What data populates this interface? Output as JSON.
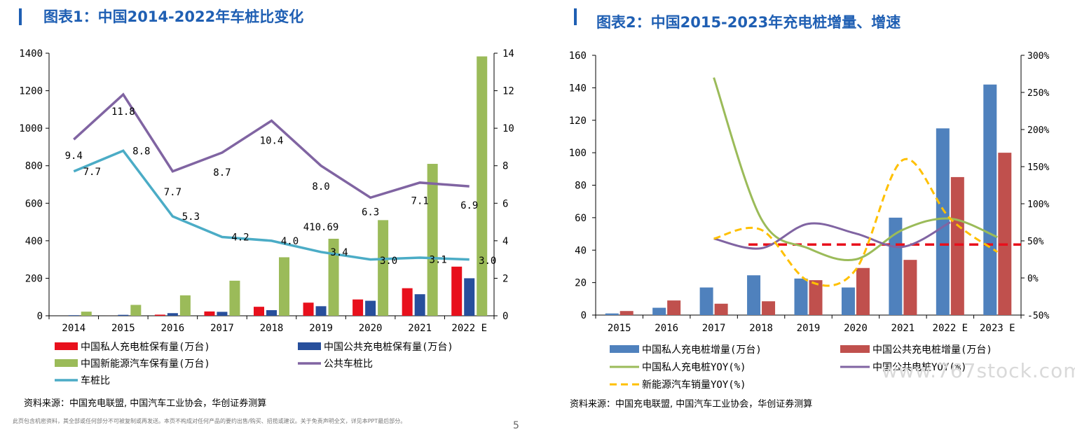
{
  "left_chart": {
    "title": "图表1：中国2014-2022年车桩比变化",
    "source": "资料来源：中国充电联盟, 中国汽车工业协会，华创证券测算"
  },
  "right_chart": {
    "title": "图表2：中国2015-2023年充电桩增量、增速",
    "source": "资料来源：中国充电联盟, 中国汽车工业协会，华创证券测算"
  },
  "disclaimer": "此页包含机密资料，其全部或任何部分不可被复制或再发送。本页不构成对任何产品的要约出售/购买、招揽或建议。关于免责声明全文，详见本PPT最后部分。",
  "page_number": "5",
  "watermark": "www.767stock.com",
  "chart_data": [
    {
      "type": "bar",
      "title": "图表1：中国2014-2022年车桩比变化",
      "categories": [
        "2014",
        "2015",
        "2016",
        "2017",
        "2018",
        "2019",
        "2020",
        "2021",
        "2022 E"
      ],
      "ylim": [
        0,
        1400
      ],
      "y_ticks": [
        0,
        200,
        400,
        600,
        800,
        1000,
        1200,
        1400
      ],
      "y2lim": [
        0,
        14
      ],
      "y2_ticks": [
        0,
        2,
        4,
        6,
        8,
        10,
        12,
        14
      ],
      "series": [
        {
          "name": "中国私人充电桩保有量(万台)",
          "type": "bar",
          "axis": "left",
          "color": "#e8101c",
          "values": [
            0,
            0.1,
            6,
            23,
            48,
            70,
            87,
            147,
            262
          ]
        },
        {
          "name": "中国公共充电桩保有量(万台)",
          "type": "bar",
          "axis": "left",
          "color": "#274f9c",
          "values": [
            3,
            5,
            14,
            21,
            30,
            51,
            80,
            115,
            200
          ]
        },
        {
          "name": "中国新能源汽车保有量(万台)",
          "type": "bar",
          "axis": "left",
          "color": "#9bbb59",
          "values": [
            22,
            58,
            109,
            187,
            312,
            410.69,
            510,
            810,
            1383
          ]
        },
        {
          "name": "公共车桩比",
          "type": "line",
          "axis": "right",
          "color": "#8064a2",
          "values": [
            9.4,
            11.8,
            7.7,
            8.7,
            10.4,
            8.0,
            6.3,
            7.1,
            6.9
          ]
        },
        {
          "name": "车桩比",
          "type": "line",
          "axis": "right",
          "color": "#4bacc6",
          "values": [
            7.7,
            8.8,
            5.3,
            4.2,
            4.0,
            3.4,
            3.0,
            3.1,
            3.0
          ]
        }
      ],
      "labels": [
        {
          "text": "9.4",
          "i": 0,
          "v": 8.55,
          "dx": 0
        },
        {
          "text": "7.7",
          "i": 0,
          "v": 7.7,
          "dx": 26
        },
        {
          "text": "11.8",
          "i": 1,
          "v": 10.9,
          "dx": 0
        },
        {
          "text": "8.8",
          "i": 1,
          "v": 8.8,
          "dx": 26
        },
        {
          "text": "7.7",
          "i": 2,
          "v": 6.6,
          "dx": 0
        },
        {
          "text": "5.3",
          "i": 2,
          "v": 5.3,
          "dx": 26
        },
        {
          "text": "8.7",
          "i": 3,
          "v": 7.65,
          "dx": 0
        },
        {
          "text": "4.2",
          "i": 3,
          "v": 4.2,
          "dx": 26
        },
        {
          "text": "10.4",
          "i": 4,
          "v": 9.35,
          "dx": 0
        },
        {
          "text": "4.0",
          "i": 4,
          "v": 4.0,
          "dx": 26
        },
        {
          "text": "8.0",
          "i": 5,
          "v": 6.9,
          "dx": 0
        },
        {
          "text": "410.69",
          "i": 5,
          "v": 4.75,
          "dx": 0
        },
        {
          "text": "3.4",
          "i": 5,
          "v": 3.4,
          "dx": 26
        },
        {
          "text": "6.3",
          "i": 6,
          "v": 5.55,
          "dx": 0
        },
        {
          "text": "3.0",
          "i": 6,
          "v": 2.95,
          "dx": 26
        },
        {
          "text": "7.1",
          "i": 7,
          "v": 6.15,
          "dx": 0
        },
        {
          "text": "3.1",
          "i": 7,
          "v": 3.0,
          "dx": 26
        },
        {
          "text": "6.9",
          "i": 8,
          "v": 5.9,
          "dx": 0
        },
        {
          "text": "3.0",
          "i": 8,
          "v": 2.95,
          "dx": 26
        }
      ],
      "legend": "bottom"
    },
    {
      "type": "bar",
      "title": "图表2：中国2015-2023年充电桩增量、增速",
      "categories": [
        "2015",
        "2016",
        "2017",
        "2018",
        "2019",
        "2020",
        "2021",
        "2022 E",
        "2023 E"
      ],
      "ylim": [
        0,
        160
      ],
      "y_ticks": [
        0,
        20,
        40,
        60,
        80,
        100,
        120,
        140,
        160
      ],
      "y2lim": [
        -50,
        300
      ],
      "y2_ticks": [
        "-50%",
        "0%",
        "50%",
        "100%",
        "150%",
        "200%",
        "250%",
        "300%"
      ],
      "reference_line": {
        "axis": "right",
        "value": 45,
        "color": "#e8101c",
        "style": "dashed"
      },
      "series": [
        {
          "name": "中国私人充电桩增量(万台)",
          "type": "bar",
          "axis": "left",
          "color": "#4f81bd",
          "values": [
            1,
            4.5,
            17,
            24.5,
            22.5,
            17,
            60,
            115,
            142
          ]
        },
        {
          "name": "中国公共充电桩增量(万台)",
          "type": "bar",
          "axis": "left",
          "color": "#c0504d",
          "values": [
            2.5,
            9,
            7,
            8.5,
            21.5,
            29,
            34,
            85,
            100
          ]
        },
        {
          "name": "中国私人充电桩YOY(%)",
          "type": "line",
          "axis": "right",
          "color": "#9bbb59",
          "values": [
            null,
            null,
            270,
            80,
            40,
            25,
            65,
            80,
            55
          ]
        },
        {
          "name": "中国公共电桩YOY(%)",
          "type": "line",
          "axis": "right",
          "color": "#8064a2",
          "values": [
            null,
            null,
            53,
            40,
            73,
            60,
            42,
            75,
            null
          ]
        },
        {
          "name": "新能源汽车销量YOY(%)",
          "type": "line",
          "axis": "right",
          "color": "#ffc000",
          "dashed": true,
          "values": [
            null,
            null,
            53,
            65,
            -4,
            11,
            159,
            80,
            35
          ]
        }
      ],
      "legend": "bottom"
    }
  ]
}
